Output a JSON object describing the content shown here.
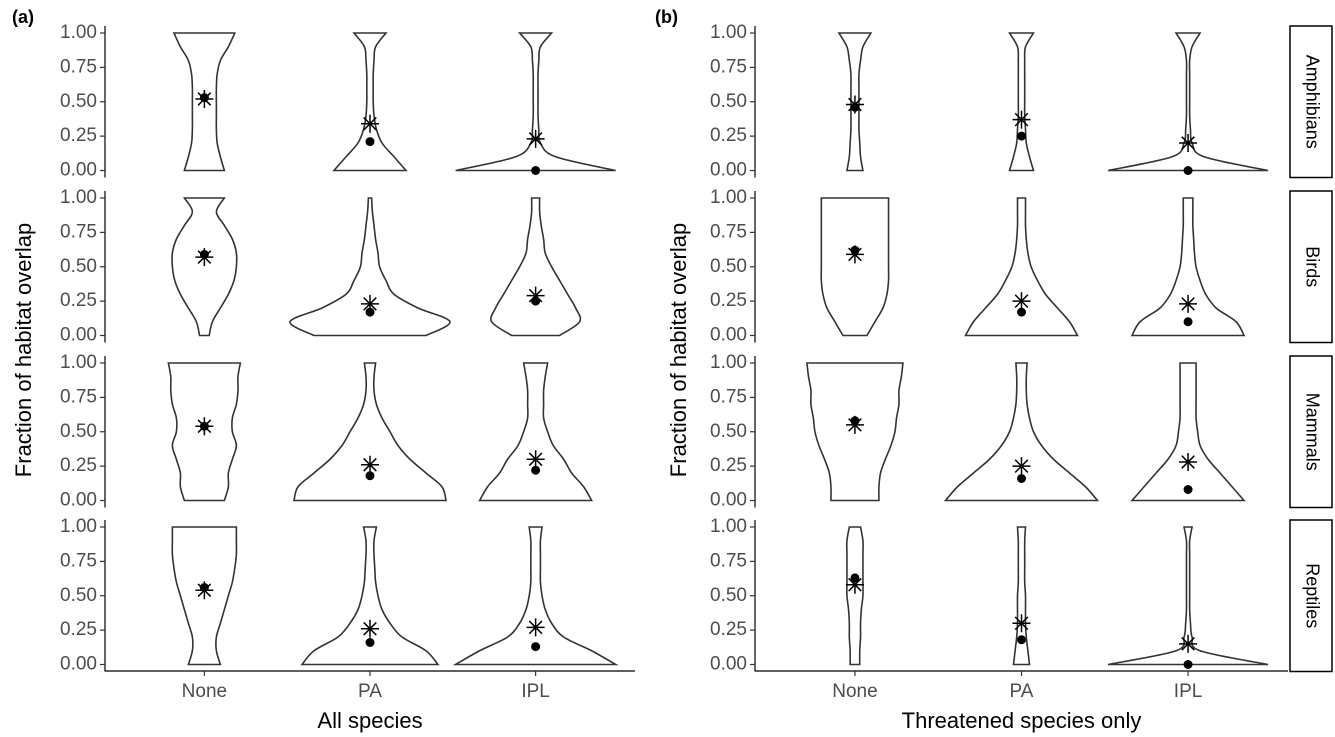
{
  "chart_data": [
    {
      "type": "violin",
      "tag": "(a)",
      "xlabel": "All species",
      "ylabel": "Fraction of habitat overlap",
      "categories": [
        "None",
        "PA",
        "IPL"
      ],
      "ylim": [
        0,
        1
      ],
      "yticks": [
        {
          "value": 0,
          "label": "0.00"
        },
        {
          "value": 0.25,
          "label": "0.25"
        },
        {
          "value": 0.5,
          "label": "0.50"
        },
        {
          "value": 0.75,
          "label": "0.75"
        },
        {
          "value": 1,
          "label": "1.00"
        }
      ],
      "density_levels": [
        0,
        0.1,
        0.2,
        0.3,
        0.4,
        0.5,
        0.6,
        0.7,
        0.8,
        0.9,
        1
      ],
      "facets": [
        {
          "violins": [
            {
              "median": 0.53,
              "mean": 0.52,
              "density": [
                0.25,
                0.2,
                0.16,
                0.15,
                0.15,
                0.15,
                0.15,
                0.16,
                0.2,
                0.3,
                0.38
              ]
            },
            {
              "median": 0.21,
              "mean": 0.34,
              "density": [
                0.45,
                0.3,
                0.15,
                0.08,
                0.05,
                0.04,
                0.04,
                0.04,
                0.05,
                0.07,
                0.2
              ]
            },
            {
              "median": 0,
              "mean": 0.23,
              "density": [
                1.0,
                0.25,
                0.06,
                0.04,
                0.03,
                0.03,
                0.03,
                0.03,
                0.04,
                0.06,
                0.2
              ]
            }
          ]
        },
        {
          "violins": [
            {
              "median": 0.59,
              "mean": 0.57,
              "density": [
                0.06,
                0.1,
                0.2,
                0.3,
                0.37,
                0.4,
                0.4,
                0.35,
                0.25,
                0.15,
                0.25
              ]
            },
            {
              "median": 0.17,
              "mean": 0.23,
              "density": [
                0.7,
                1.0,
                0.6,
                0.3,
                0.2,
                0.12,
                0.1,
                0.07,
                0.05,
                0.03,
                0.02
              ]
            },
            {
              "median": 0.25,
              "mean": 0.29,
              "density": [
                0.3,
                0.55,
                0.5,
                0.4,
                0.3,
                0.2,
                0.12,
                0.1,
                0.07,
                0.05,
                0.05
              ]
            }
          ]
        },
        {
          "violins": [
            {
              "median": 0.54,
              "mean": 0.54,
              "density": [
                0.25,
                0.3,
                0.3,
                0.35,
                0.4,
                0.35,
                0.35,
                0.4,
                0.42,
                0.42,
                0.45
              ]
            },
            {
              "median": 0.18,
              "mean": 0.26,
              "density": [
                0.95,
                0.9,
                0.7,
                0.5,
                0.35,
                0.25,
                0.15,
                0.08,
                0.05,
                0.05,
                0.07
              ]
            },
            {
              "median": 0.22,
              "mean": 0.3,
              "density": [
                0.7,
                0.6,
                0.45,
                0.35,
                0.22,
                0.15,
                0.1,
                0.1,
                0.1,
                0.12,
                0.15
              ]
            }
          ]
        },
        {
          "violins": [
            {
              "median": 0.56,
              "mean": 0.54,
              "density": [
                0.2,
                0.15,
                0.15,
                0.2,
                0.25,
                0.3,
                0.35,
                0.38,
                0.4,
                0.4,
                0.4
              ]
            },
            {
              "median": 0.16,
              "mean": 0.26,
              "density": [
                0.85,
                0.7,
                0.4,
                0.25,
                0.15,
                0.1,
                0.07,
                0.06,
                0.05,
                0.05,
                0.08
              ]
            },
            {
              "median": 0.13,
              "mean": 0.27,
              "density": [
                1.0,
                0.7,
                0.35,
                0.2,
                0.12,
                0.08,
                0.06,
                0.06,
                0.06,
                0.06,
                0.08
              ]
            }
          ]
        }
      ]
    },
    {
      "type": "violin",
      "tag": "(b)",
      "xlabel": "Threatened species only",
      "ylabel": "Fraction of habitat overlap",
      "categories": [
        "None",
        "PA",
        "IPL"
      ],
      "ylim": [
        0,
        1
      ],
      "yticks": [
        {
          "value": 0,
          "label": "0.00"
        },
        {
          "value": 0.25,
          "label": "0.25"
        },
        {
          "value": 0.5,
          "label": "0.50"
        },
        {
          "value": 0.75,
          "label": "0.75"
        },
        {
          "value": 1,
          "label": "1.00"
        }
      ],
      "density_levels": [
        0,
        0.1,
        0.2,
        0.3,
        0.4,
        0.5,
        0.6,
        0.7,
        0.8,
        0.9,
        1
      ],
      "facets": [
        {
          "name": "Amphibians",
          "violins": [
            {
              "median": 0.46,
              "mean": 0.48,
              "density": [
                0.1,
                0.07,
                0.06,
                0.05,
                0.05,
                0.05,
                0.05,
                0.05,
                0.07,
                0.1,
                0.2
              ]
            },
            {
              "median": 0.25,
              "mean": 0.37,
              "density": [
                0.15,
                0.1,
                0.06,
                0.05,
                0.04,
                0.04,
                0.04,
                0.04,
                0.04,
                0.05,
                0.15
              ]
            },
            {
              "median": 0,
              "mean": 0.2,
              "density": [
                1.0,
                0.2,
                0.05,
                0.03,
                0.02,
                0.02,
                0.02,
                0.02,
                0.02,
                0.05,
                0.15
              ]
            }
          ]
        },
        {
          "name": "Birds",
          "violins": [
            {
              "median": 0.62,
              "mean": 0.59,
              "density": [
                0.15,
                0.25,
                0.35,
                0.4,
                0.42,
                0.42,
                0.42,
                0.42,
                0.42,
                0.42,
                0.42
              ]
            },
            {
              "median": 0.17,
              "mean": 0.25,
              "density": [
                0.7,
                0.6,
                0.45,
                0.3,
                0.2,
                0.12,
                0.08,
                0.06,
                0.05,
                0.05,
                0.05
              ]
            },
            {
              "median": 0.1,
              "mean": 0.23,
              "density": [
                0.7,
                0.6,
                0.35,
                0.22,
                0.15,
                0.1,
                0.08,
                0.07,
                0.06,
                0.06,
                0.06
              ]
            }
          ]
        },
        {
          "name": "Mammals",
          "violins": [
            {
              "median": 0.58,
              "mean": 0.55,
              "density": [
                0.3,
                0.3,
                0.32,
                0.38,
                0.45,
                0.5,
                0.52,
                0.55,
                0.55,
                0.58,
                0.6
              ]
            },
            {
              "median": 0.16,
              "mean": 0.25,
              "density": [
                0.95,
                0.8,
                0.6,
                0.4,
                0.25,
                0.15,
                0.1,
                0.07,
                0.06,
                0.06,
                0.07
              ]
            },
            {
              "median": 0.08,
              "mean": 0.28,
              "density": [
                0.7,
                0.55,
                0.4,
                0.25,
                0.15,
                0.12,
                0.1,
                0.1,
                0.1,
                0.1,
                0.1
              ]
            }
          ]
        },
        {
          "name": "Reptiles",
          "violins": [
            {
              "median": 0.63,
              "mean": 0.58,
              "density": [
                0.06,
                0.06,
                0.07,
                0.07,
                0.08,
                0.1,
                0.1,
                0.1,
                0.1,
                0.1,
                0.07
              ]
            },
            {
              "median": 0.18,
              "mean": 0.3,
              "density": [
                0.1,
                0.08,
                0.06,
                0.05,
                0.05,
                0.05,
                0.04,
                0.04,
                0.04,
                0.04,
                0.05
              ]
            },
            {
              "median": 0,
              "mean": 0.15,
              "density": [
                1.0,
                0.15,
                0.05,
                0.03,
                0.02,
                0.02,
                0.02,
                0.02,
                0.02,
                0.02,
                0.05
              ]
            }
          ]
        }
      ]
    }
  ]
}
